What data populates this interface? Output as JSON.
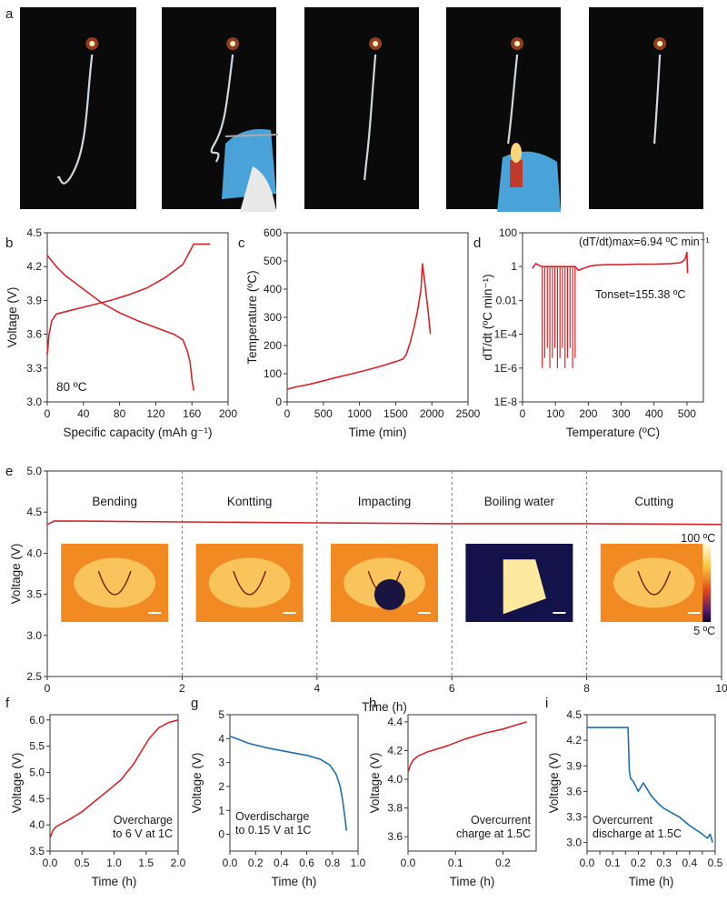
{
  "panel_letters": {
    "a": "a",
    "b": "b",
    "c": "c",
    "d": "d",
    "e": "e",
    "f": "f",
    "g": "g",
    "h": "h",
    "i": "i"
  },
  "colors": {
    "red": "#d9232a",
    "blue": "#1f6fb0",
    "axis": "#333333"
  },
  "photos": [
    {
      "label": "photo-1"
    },
    {
      "label": "photo-2"
    },
    {
      "label": "photo-3"
    },
    {
      "label": "photo-4"
    },
    {
      "label": "photo-5"
    }
  ],
  "chart_data": [
    {
      "id": "b",
      "type": "line",
      "xlabel": "Specific capacity (mAh g⁻¹)",
      "ylabel": "Voltage (V)",
      "xlim": [
        0,
        200
      ],
      "ylim": [
        3.0,
        4.5
      ],
      "xticks": [
        0,
        40,
        80,
        120,
        160,
        200
      ],
      "yticks": [
        3.0,
        3.3,
        3.6,
        3.9,
        4.2,
        4.5
      ],
      "ytick_labels": [
        "3.0",
        "3.3",
        "3.6",
        "3.9",
        "4.2",
        "4.5"
      ],
      "annotation": "80 ºC",
      "series": [
        {
          "name": "charge",
          "color": "#d9232a",
          "x": [
            0,
            2,
            5,
            10,
            20,
            30,
            50,
            70,
            90,
            110,
            130,
            150,
            162,
            170,
            180
          ],
          "y": [
            3.42,
            3.6,
            3.72,
            3.78,
            3.8,
            3.82,
            3.86,
            3.9,
            3.95,
            4.01,
            4.1,
            4.22,
            4.4,
            4.4,
            4.4
          ]
        },
        {
          "name": "discharge",
          "color": "#d9232a",
          "x": [
            0,
            5,
            10,
            20,
            40,
            60,
            80,
            100,
            120,
            140,
            150,
            155,
            158,
            160,
            162
          ],
          "y": [
            4.3,
            4.25,
            4.2,
            4.12,
            4.0,
            3.88,
            3.79,
            3.72,
            3.66,
            3.6,
            3.55,
            3.45,
            3.35,
            3.2,
            3.1
          ]
        }
      ]
    },
    {
      "id": "c",
      "type": "line",
      "xlabel": "Time (min)",
      "ylabel": "Temperature (ºC)",
      "xlim": [
        0,
        2500
      ],
      "ylim": [
        0,
        600
      ],
      "xticks": [
        0,
        500,
        1000,
        1500,
        2000,
        2500
      ],
      "yticks": [
        0,
        100,
        200,
        300,
        400,
        500,
        600
      ],
      "series": [
        {
          "name": "temperature",
          "color": "#d9232a",
          "x": [
            0,
            100,
            300,
            500,
            700,
            900,
            1100,
            1300,
            1500,
            1600,
            1650,
            1700,
            1750,
            1800,
            1850,
            1870,
            1900,
            1950,
            1980
          ],
          "y": [
            45,
            52,
            62,
            75,
            88,
            100,
            113,
            127,
            143,
            152,
            170,
            210,
            260,
            320,
            400,
            490,
            430,
            320,
            240
          ]
        }
      ]
    },
    {
      "id": "d",
      "type": "line",
      "yscale": "log",
      "xlabel": "Temperature (ºC)",
      "ylabel": "dT/dt (ºC min⁻¹)",
      "xlim": [
        0,
        550
      ],
      "ylog_range": [
        -8,
        2
      ],
      "xticks": [
        0,
        100,
        200,
        300,
        400,
        500
      ],
      "yticks": [
        100,
        1,
        0.01,
        0.0001,
        1e-06,
        1e-08
      ],
      "ytick_labels": [
        "100",
        "1",
        "0.01",
        "1E-4",
        "1E-6",
        "1E-8"
      ],
      "annotation_max": "(dT/dt)max=6.94 ºC min⁻¹",
      "annotation_onset": "Tonset=155.38 ºC",
      "series": [
        {
          "name": "dT/dt",
          "color": "#d9232a",
          "x": [
            30,
            40,
            50,
            60,
            160,
            170,
            200,
            220,
            260,
            300,
            350,
            400,
            450,
            480,
            490,
            495,
            500,
            502
          ],
          "y": [
            0.8,
            1.5,
            1.2,
            1.0,
            1.0,
            0.6,
            1.0,
            1.2,
            1.3,
            1.3,
            1.4,
            1.4,
            1.5,
            1.7,
            2.2,
            3.0,
            6.94,
            0.4
          ]
        }
      ],
      "spike_region": {
        "x_start": 60,
        "x_end": 160,
        "count": 14,
        "y_low": 1e-06,
        "y_high": 1.0
      }
    },
    {
      "id": "e",
      "type": "line",
      "xlabel": "Time (h)",
      "ylabel": "Voltage (V)",
      "xlim": [
        0,
        10
      ],
      "ylim": [
        2.5,
        5.0
      ],
      "xticks": [
        0,
        2,
        4,
        6,
        8,
        10
      ],
      "yticks": [
        2.5,
        3.0,
        3.5,
        4.0,
        4.5,
        5.0
      ],
      "ytick_labels": [
        "2.5",
        "3.0",
        "3.5",
        "4.0",
        "4.5",
        "5.0"
      ],
      "dividers": [
        2,
        4,
        6,
        8
      ],
      "segments": [
        "Bending",
        "Kontting",
        "Impacting",
        "Boiling water",
        "Cutting"
      ],
      "colorbar": {
        "max_label": "100 ºC",
        "min_label": "5 ºC"
      },
      "series": [
        {
          "name": "voltage",
          "color": "#d9232a",
          "x": [
            0,
            0.1,
            0.5,
            2,
            4,
            6,
            8,
            10
          ],
          "y": [
            4.35,
            4.39,
            4.39,
            4.38,
            4.37,
            4.36,
            4.36,
            4.35
          ]
        }
      ]
    },
    {
      "id": "f",
      "type": "line",
      "xlabel": "Time (h)",
      "ylabel": "Voltage (V)",
      "xlim": [
        0,
        2.0
      ],
      "ylim": [
        3.5,
        6.1
      ],
      "xticks": [
        0,
        0.5,
        1.0,
        1.5,
        2.0
      ],
      "xtick_labels": [
        "0.0",
        "0.5",
        "1.0",
        "1.5",
        "2.0"
      ],
      "yticks": [
        3.5,
        4.0,
        4.5,
        5.0,
        5.5,
        6.0
      ],
      "ytick_labels": [
        "3.5",
        "4.0",
        "4.5",
        "5.0",
        "5.5",
        "6.0"
      ],
      "annotation": [
        "Overcharge",
        "to 6 V at 1C"
      ],
      "series": [
        {
          "name": "overcharge",
          "color": "#d9232a",
          "x": [
            0,
            0.05,
            0.1,
            0.3,
            0.5,
            0.7,
            0.9,
            1.1,
            1.3,
            1.45,
            1.55,
            1.7,
            1.85,
            2.0
          ],
          "y": [
            3.75,
            3.9,
            3.97,
            4.1,
            4.25,
            4.45,
            4.65,
            4.85,
            5.15,
            5.45,
            5.65,
            5.85,
            5.95,
            6.0
          ]
        }
      ]
    },
    {
      "id": "g",
      "type": "line",
      "xlabel": "Time (h)",
      "ylabel": "Voltage (V)",
      "xlim": [
        0,
        1.0
      ],
      "ylim": [
        -0.7,
        5.0
      ],
      "xticks": [
        0,
        0.2,
        0.4,
        0.6,
        0.8,
        1.0
      ],
      "xtick_labels": [
        "0.0",
        "0.2",
        "0.4",
        "0.6",
        "0.8",
        "1.0"
      ],
      "yticks": [
        0,
        1,
        2,
        3,
        4,
        5
      ],
      "ytick_labels": [
        "0",
        "1",
        "2",
        "3",
        "4",
        "5"
      ],
      "annotation": [
        "Overdischarge",
        "to 0.15 V at 1C"
      ],
      "series": [
        {
          "name": "overdischarge",
          "color": "#1f6fb0",
          "x": [
            0,
            0.05,
            0.15,
            0.3,
            0.45,
            0.6,
            0.7,
            0.78,
            0.83,
            0.86,
            0.88,
            0.9,
            0.91
          ],
          "y": [
            4.1,
            4.0,
            3.8,
            3.6,
            3.45,
            3.3,
            3.15,
            2.9,
            2.5,
            2.0,
            1.4,
            0.6,
            0.15
          ]
        }
      ]
    },
    {
      "id": "h",
      "type": "line",
      "xlabel": "Time (h)",
      "ylabel": "Voltage (V)",
      "xlim": [
        0,
        0.27
      ],
      "ylim": [
        3.5,
        4.45
      ],
      "xticks": [
        0,
        0.1,
        0.2
      ],
      "xtick_labels": [
        "0.0",
        "0.1",
        "0.2"
      ],
      "yticks": [
        3.6,
        3.8,
        4.0,
        4.2,
        4.4
      ],
      "ytick_labels": [
        "3.6",
        "3.8",
        "4.0",
        "4.2",
        "4.4"
      ],
      "annotation": [
        "Overcurrent",
        "charge at 1.5C"
      ],
      "series": [
        {
          "name": "overcurrent-charge",
          "color": "#d9232a",
          "x": [
            0,
            0.005,
            0.01,
            0.02,
            0.04,
            0.08,
            0.12,
            0.16,
            0.2,
            0.25
          ],
          "y": [
            4.05,
            4.1,
            4.13,
            4.16,
            4.19,
            4.23,
            4.28,
            4.32,
            4.35,
            4.4
          ]
        }
      ]
    },
    {
      "id": "i",
      "type": "line",
      "xlabel": "Time (h)",
      "ylabel": "Voltage (V)",
      "xlim": [
        0,
        0.5
      ],
      "ylim": [
        2.9,
        4.5
      ],
      "xticks": [
        0,
        0.05,
        0.1,
        0.15,
        0.2,
        0.25,
        0.3,
        0.35,
        0.4,
        0.45,
        0.5
      ],
      "xtick_labels": [
        "0.0",
        "0.1",
        "0.1",
        "0.2",
        "0.2",
        "0.3",
        "0.3",
        "0.4",
        "0.4",
        "0.5",
        "0.5"
      ],
      "xtick_labels_shown": [
        "0.0",
        "0.05",
        "0.10",
        "0.15",
        "0.20",
        "0.25",
        "0.30",
        "0.35",
        "0.40",
        "0.45",
        "0.50"
      ],
      "yticks": [
        3.0,
        3.3,
        3.6,
        3.9,
        4.2,
        4.5
      ],
      "ytick_labels": [
        "3.0",
        "3.3",
        "3.6",
        "3.9",
        "4.2",
        "4.5"
      ],
      "annotation": [
        "Overcurrent",
        "discharge at 1.5C"
      ],
      "series": [
        {
          "name": "overcurrent-discharge",
          "color": "#1f6fb0",
          "x": [
            0,
            0.16,
            0.165,
            0.17,
            0.18,
            0.2,
            0.22,
            0.25,
            0.28,
            0.3,
            0.33,
            0.36,
            0.4,
            0.44,
            0.47,
            0.48,
            0.49
          ],
          "y": [
            4.35,
            4.35,
            3.85,
            3.75,
            3.72,
            3.6,
            3.7,
            3.55,
            3.45,
            3.4,
            3.35,
            3.3,
            3.2,
            3.12,
            3.05,
            3.1,
            3.0
          ]
        }
      ]
    }
  ]
}
